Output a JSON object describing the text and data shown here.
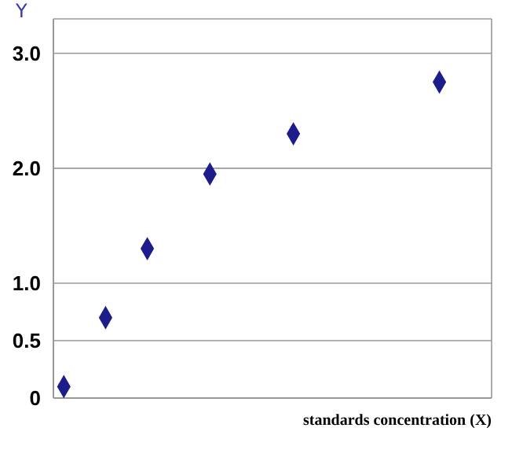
{
  "chart_data": {
    "type": "scatter",
    "xlabel": "standards concentration (X)",
    "ylabel": "Y",
    "categories": [
      null,
      null,
      null,
      null,
      null,
      null,
      null,
      null,
      null,
      null,
      null,
      null,
      null,
      null,
      null,
      null,
      null,
      null,
      null,
      null,
      null
    ],
    "series": [
      {
        "color": "#1c1c8a",
        "values": [
          0.1,
          null,
          0.7,
          null,
          1.3,
          null,
          null,
          1.95,
          null,
          null,
          null,
          2.3,
          null,
          null,
          null,
          null,
          null,
          null,
          2.75,
          null,
          null
        ]
      }
    ],
    "ylim": [
      0,
      3.3
    ],
    "yticks": [
      0,
      0.5,
      {
        "value": 1,
        "label": "1.0"
      },
      {
        "value": 2,
        "label": "2.0"
      },
      {
        "value": 3,
        "label": "3.0"
      }
    ],
    "grid": true,
    "marker": "diamond",
    "tick_labels": "y"
  }
}
